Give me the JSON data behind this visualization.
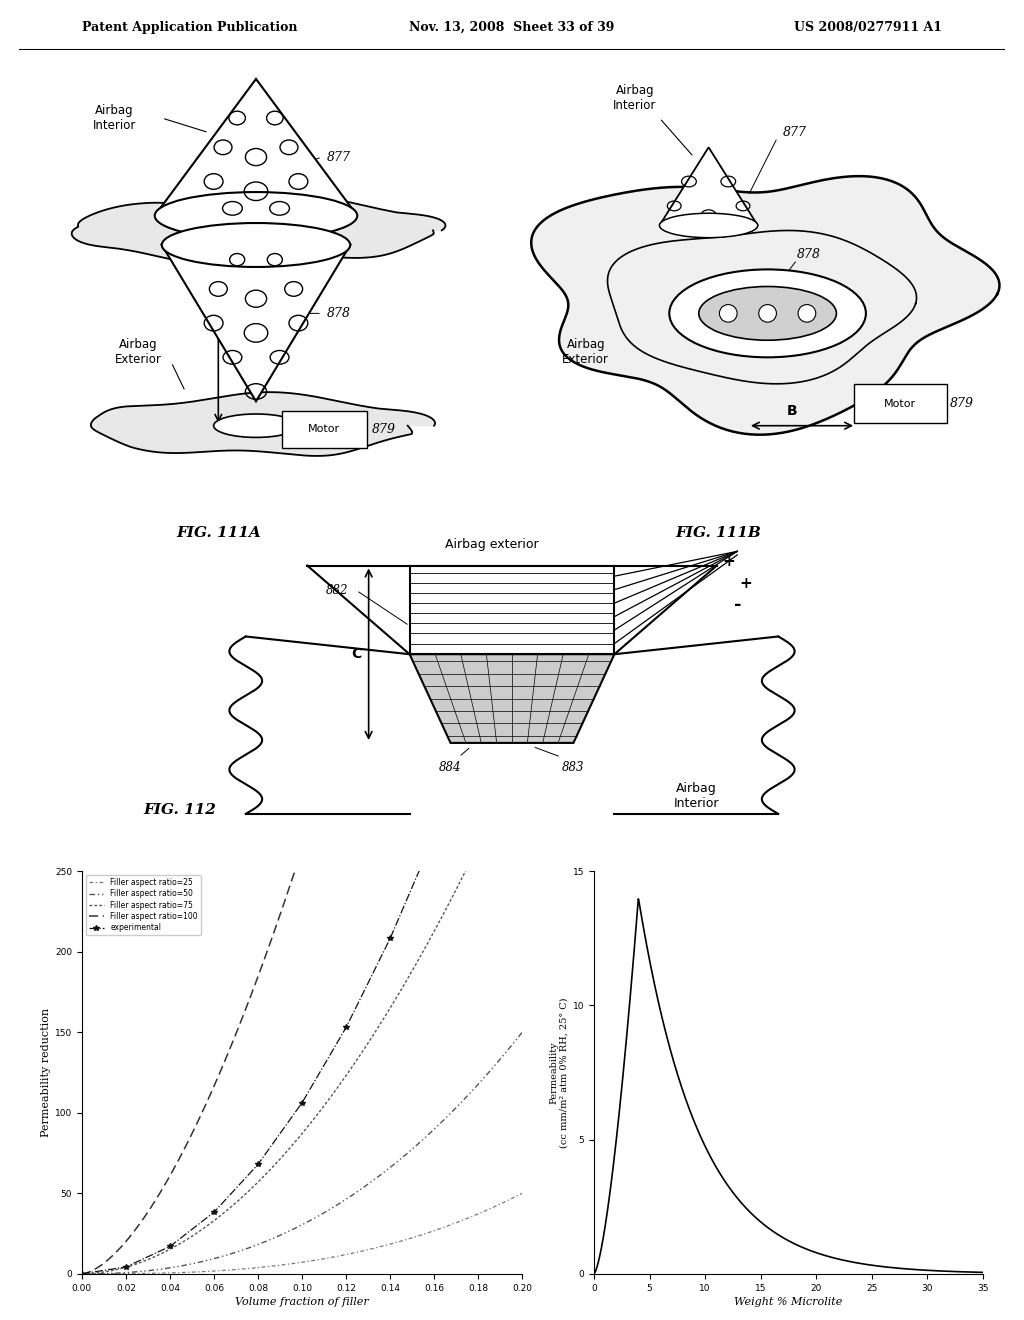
{
  "page_header_left": "Patent Application Publication",
  "page_header_mid": "Nov. 13, 2008  Sheet 33 of 39",
  "page_header_right": "US 2008/0277911 A1",
  "background_color": "#ffffff",
  "fig113": {
    "xlabel": "Volume fraction of filler",
    "ylabel": "Permeability reduction",
    "xlim": [
      0,
      0.2
    ],
    "ylim": [
      0,
      250
    ],
    "xticks": [
      0,
      0.02,
      0.04,
      0.06,
      0.08,
      0.1,
      0.12,
      0.14,
      0.16,
      0.18,
      0.2
    ],
    "yticks": [
      0,
      50,
      100,
      150,
      200,
      250
    ]
  },
  "fig114": {
    "xlabel": "Weight % Microlite",
    "ylabel": "Permeability\n(cc mm/m² atm 0% RH, 25° C)",
    "xlim": [
      0,
      35
    ],
    "ylim": [
      0,
      15
    ],
    "xticks": [
      0,
      5,
      10,
      15,
      20,
      25,
      30,
      35
    ],
    "yticks": [
      0,
      5,
      10,
      15
    ]
  }
}
